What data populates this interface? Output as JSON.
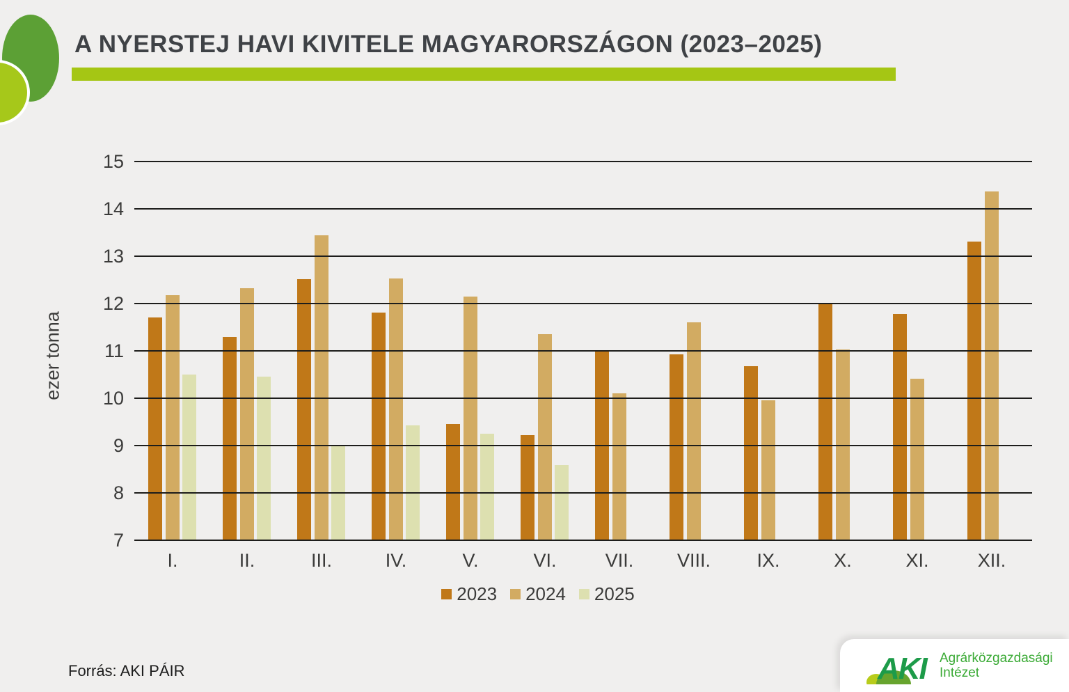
{
  "header": {
    "title": "A NYERSTEJ HAVI KIVITELE MAGYARORSZÁGON (2023–2025)",
    "title_color": "#3f4246",
    "accent_bar_color": "#a5c614",
    "deco_large_color": "#5ca035",
    "deco_small_color": "#a6c81a"
  },
  "chart_data": {
    "type": "bar",
    "title": "",
    "xlabel": "",
    "ylabel": "ezer tonna",
    "ylim": [
      7,
      15
    ],
    "yticks": [
      7,
      8,
      9,
      10,
      11,
      12,
      13,
      14,
      15
    ],
    "grid": true,
    "gridline_color": "#1d1d1b",
    "legend_position": "bottom",
    "categories": [
      "I.",
      "II.",
      "III.",
      "IV.",
      "V.",
      "VI.",
      "VII.",
      "VIII.",
      "IX.",
      "X.",
      "XI.",
      "XII."
    ],
    "series": [
      {
        "name": "2023",
        "color": "#c07818",
        "values": [
          11.71,
          11.3,
          12.51,
          11.81,
          9.46,
          9.22,
          11.0,
          10.92,
          10.68,
          12.01,
          11.78,
          13.31
        ]
      },
      {
        "name": "2024",
        "color": "#d2ab62",
        "values": [
          12.17,
          12.33,
          13.44,
          12.53,
          12.14,
          11.35,
          10.1,
          11.61,
          9.95,
          11.03,
          10.41,
          14.37
        ]
      },
      {
        "name": "2025",
        "color": "#dde0b0",
        "values": [
          10.5,
          10.45,
          9.0,
          9.42,
          9.25,
          8.59,
          null,
          null,
          null,
          null,
          null,
          null
        ]
      }
    ]
  },
  "source": {
    "label": "Forrás: AKI PÁIR"
  },
  "logo": {
    "mark": "AKI",
    "mark_color": "#1d9b49",
    "hill_left_color": "#b8cc1c",
    "hill_right_color": "#67a42e",
    "line1": "Agrárközgazdasági",
    "line2": "Intézet",
    "text_color": "#3aaa35"
  }
}
